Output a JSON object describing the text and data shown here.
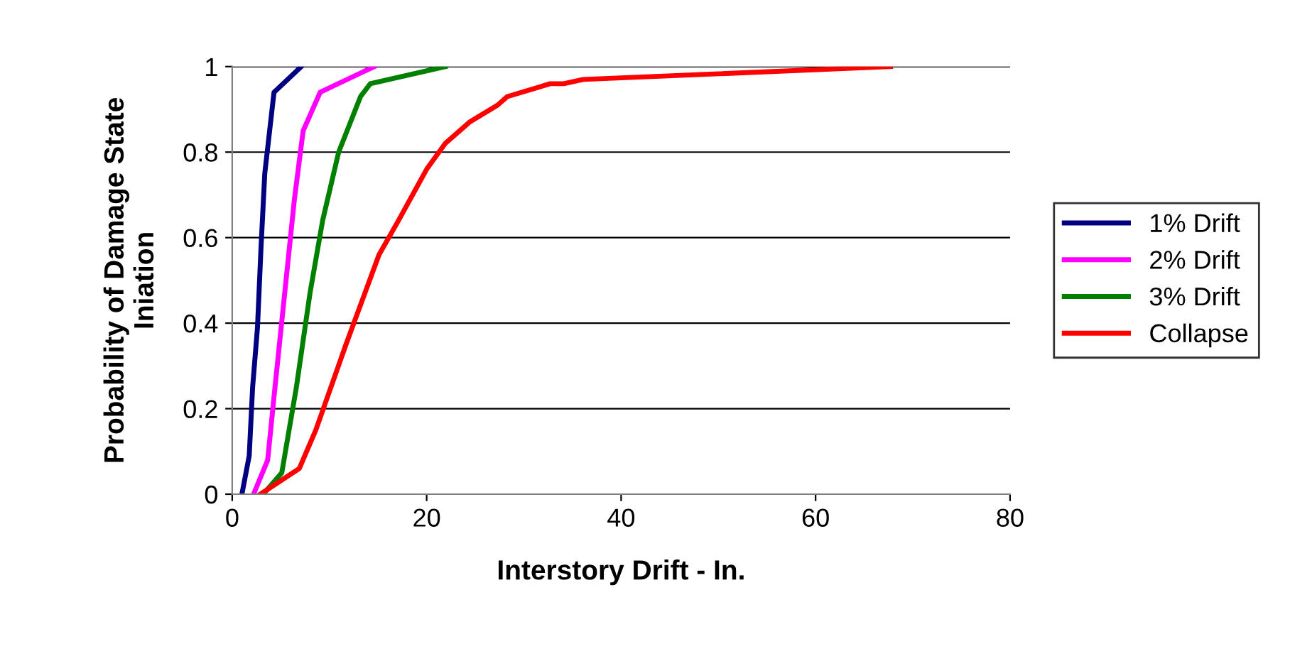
{
  "chart_data": {
    "type": "line",
    "xlabel": "Interstory Drift - In.",
    "ylabel": "Probability of Damage State\nIniation",
    "xlim": [
      0,
      80
    ],
    "xticks": [
      0,
      20,
      40,
      60,
      80
    ],
    "ylim": [
      0,
      1
    ],
    "yticks": [
      0,
      0.2,
      0.4,
      0.6,
      0.8,
      1
    ],
    "grid": "y",
    "legend": "right",
    "line_style": "solid",
    "marker": "none",
    "series": [
      {
        "name": "1% Drift",
        "color": "#000080",
        "x": [
          1.0,
          1.75,
          2.1,
          2.6,
          2.97,
          3.35,
          4.3,
          7.1
        ],
        "values": [
          0,
          0.09,
          0.25,
          0.39,
          0.58,
          0.75,
          0.94,
          1
        ]
      },
      {
        "name": "2% Drift",
        "color": "#ff00ff",
        "x": [
          2.2,
          3.65,
          4.4,
          5.4,
          6.4,
          7.3,
          9.05,
          14.6
        ],
        "values": [
          0,
          0.08,
          0.25,
          0.47,
          0.69,
          0.85,
          0.94,
          1
        ]
      },
      {
        "name": "3% Drift",
        "color": "#008000",
        "x": [
          3.2,
          5.1,
          6.6,
          8.0,
          9.3,
          10.95,
          13.2,
          14.2,
          21.9
        ],
        "values": [
          0,
          0.05,
          0.25,
          0.47,
          0.64,
          0.8,
          0.93,
          0.96,
          1
        ]
      },
      {
        "name": "Collapse",
        "color": "#ff0000",
        "x": [
          2.9,
          6.9,
          8.6,
          11.7,
          15.1,
          17.1,
          20.0,
          21.9,
          24.4,
          27.3,
          28.3,
          32.7,
          34.1,
          36.1,
          67.7
        ],
        "values": [
          0,
          0.06,
          0.15,
          0.35,
          0.56,
          0.64,
          0.76,
          0.82,
          0.87,
          0.91,
          0.93,
          0.96,
          0.96,
          0.97,
          1
        ]
      }
    ]
  }
}
